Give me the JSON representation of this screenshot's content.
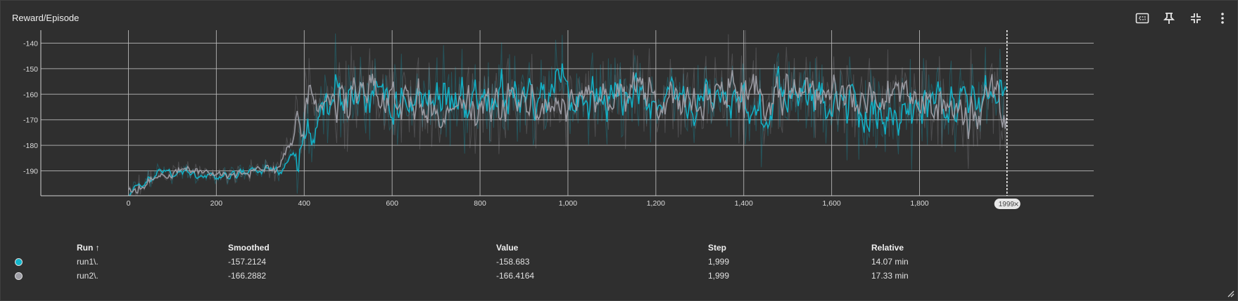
{
  "card": {
    "title": "Reward/Episode"
  },
  "toolbar": {
    "icons": [
      "fit-domain-icon",
      "pin-icon",
      "collapse-icon",
      "more-vert-icon"
    ]
  },
  "cursor": {
    "step_label": "1999"
  },
  "table": {
    "headers": {
      "run": "Run ↑",
      "smoothed": "Smoothed",
      "value": "Value",
      "step": "Step",
      "relative": "Relative"
    },
    "rows": [
      {
        "color": "#12b5cb",
        "run": "run1\\.",
        "smoothed": "-157.2124",
        "value": "-158.683",
        "step": "1,999",
        "relative": "14.07 min"
      },
      {
        "color": "#9e9ea6",
        "run": "run2\\.",
        "smoothed": "-166.2882",
        "value": "-166.4164",
        "step": "1,999",
        "relative": "17.33 min"
      }
    ]
  },
  "chart_data": {
    "type": "line",
    "title": "Reward/Episode",
    "xlabel": "",
    "ylabel": "",
    "xlim": [
      -200,
      2200
    ],
    "ylim": [
      -200,
      -135
    ],
    "x_ticks": [
      0,
      200,
      400,
      600,
      800,
      1000,
      1200,
      1400,
      1600,
      1800
    ],
    "x_tick_labels": [
      "0",
      "200",
      "400",
      "600",
      "800",
      "1,000",
      "1,200",
      "1,400",
      "1,600",
      "1,800"
    ],
    "y_ticks": [
      -190,
      -180,
      -170,
      -160,
      -150,
      -140
    ],
    "y_tick_labels": [
      "-190",
      "-180",
      "-170",
      "-160",
      "-150",
      "-140"
    ],
    "grid": true,
    "series": [
      {
        "name": "run1\\.",
        "color": "#12b5cb",
        "x": [
          0,
          60,
          120,
          200,
          280,
          340,
          400,
          480,
          600,
          800,
          1000,
          1200,
          1400,
          1600,
          1800,
          1999
        ],
        "values": [
          -199,
          -191,
          -191,
          -193,
          -190,
          -190,
          -178,
          -158,
          -162,
          -160,
          -162,
          -163,
          -163,
          -161,
          -170,
          -157
        ]
      },
      {
        "name": "run2\\.",
        "color": "#9e9ea6",
        "x": [
          0,
          60,
          120,
          200,
          280,
          340,
          400,
          480,
          600,
          800,
          1000,
          1200,
          1400,
          1600,
          1800,
          1999
        ],
        "values": [
          -199,
          -192,
          -190,
          -192,
          -190,
          -189,
          -165,
          -163,
          -163,
          -163,
          -162,
          -162,
          -160,
          -160,
          -164,
          -166
        ]
      }
    ]
  }
}
